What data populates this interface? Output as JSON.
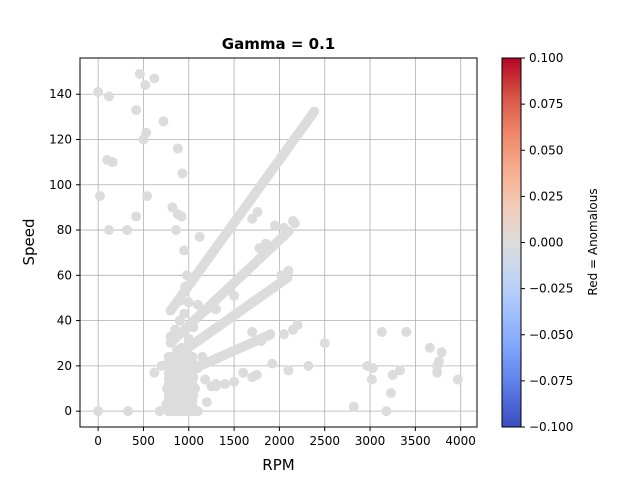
{
  "chart_data": {
    "type": "scatter",
    "title": "Gamma = 0.1",
    "xlabel": "RPM",
    "ylabel": "Speed",
    "xlim": [
      -200,
      4180
    ],
    "ylim": [
      -7,
      156
    ],
    "xticks": [
      0,
      500,
      1000,
      1500,
      2000,
      2500,
      3000,
      3500,
      4000
    ],
    "yticks": [
      0,
      20,
      40,
      60,
      80,
      100,
      120,
      140
    ],
    "grid": true,
    "point_color": "#dddcdc",
    "colorbar": {
      "label": "Red = Anomalous",
      "range": [
        -0.1,
        0.1
      ],
      "ticks": [
        "0.100",
        "0.075",
        "0.050",
        "0.025",
        "0.000",
        "−0.025",
        "−0.050",
        "−0.075",
        "−0.100"
      ],
      "colormap": "coolwarm",
      "colors": [
        "#3b4cc0",
        "#5977e3",
        "#7b9ff9",
        "#9ebeff",
        "#c0d4f5",
        "#dddcdc",
        "#f2cbb7",
        "#f7ac8e",
        "#ee8468",
        "#d65244",
        "#b40426"
      ]
    },
    "lines": [
      {
        "x1": 800,
        "x2": 2400,
        "slope": 0.0555,
        "step": 24
      },
      {
        "x1": 800,
        "x2": 2100,
        "slope": 0.0378,
        "step": 26
      },
      {
        "x1": 800,
        "x2": 2100,
        "slope": 0.0282,
        "step": 28
      },
      {
        "x1": 800,
        "x2": 1900,
        "slope": 0.0178,
        "step": 30
      }
    ],
    "points": [
      [
        0,
        141
      ],
      [
        120,
        139
      ],
      [
        460,
        149
      ],
      [
        620,
        147
      ],
      [
        520,
        144
      ],
      [
        420,
        133
      ],
      [
        720,
        128
      ],
      [
        530,
        123
      ],
      [
        500,
        120
      ],
      [
        880,
        116
      ],
      [
        100,
        111
      ],
      [
        160,
        110
      ],
      [
        930,
        105
      ],
      [
        20,
        95
      ],
      [
        540,
        95
      ],
      [
        820,
        90
      ],
      [
        880,
        87
      ],
      [
        420,
        86
      ],
      [
        920,
        86
      ],
      [
        320,
        80
      ],
      [
        120,
        80
      ],
      [
        860,
        80
      ],
      [
        1120,
        77
      ],
      [
        950,
        71
      ],
      [
        980,
        60
      ],
      [
        0,
        0
      ],
      [
        330,
        0
      ],
      [
        680,
        0
      ],
      [
        2820,
        2
      ],
      [
        3180,
        0
      ],
      [
        1100,
        0
      ],
      [
        1200,
        4
      ],
      [
        620,
        17
      ],
      [
        700,
        20
      ],
      [
        1150,
        24
      ],
      [
        1250,
        11
      ],
      [
        1300,
        11
      ],
      [
        1400,
        12
      ],
      [
        1500,
        13
      ],
      [
        1600,
        17
      ],
      [
        1700,
        15
      ],
      [
        1750,
        16
      ],
      [
        1800,
        31
      ],
      [
        1920,
        21
      ],
      [
        2100,
        18
      ],
      [
        2320,
        20
      ],
      [
        2500,
        30
      ],
      [
        1700,
        35
      ],
      [
        1900,
        34
      ],
      [
        2050,
        34
      ],
      [
        2150,
        36
      ],
      [
        2200,
        38
      ],
      [
        2020,
        60
      ],
      [
        2100,
        62
      ],
      [
        1780,
        72
      ],
      [
        1850,
        74
      ],
      [
        1700,
        85
      ],
      [
        1760,
        88
      ],
      [
        1950,
        82
      ],
      [
        2050,
        81
      ],
      [
        2150,
        84
      ],
      [
        2170,
        83
      ],
      [
        1300,
        45
      ],
      [
        1200,
        45
      ],
      [
        1500,
        51
      ],
      [
        1000,
        23
      ],
      [
        900,
        26
      ],
      [
        1000,
        31
      ],
      [
        1050,
        37
      ],
      [
        1000,
        48
      ],
      [
        920,
        49
      ],
      [
        960,
        55
      ],
      [
        1000,
        32
      ],
      [
        1100,
        47
      ],
      [
        1000,
        16
      ],
      [
        2970,
        20
      ],
      [
        3030,
        19
      ],
      [
        3020,
        14
      ],
      [
        3130,
        35
      ],
      [
        3250,
        16
      ],
      [
        3330,
        18
      ],
      [
        3400,
        35
      ],
      [
        3230,
        8
      ],
      [
        3660,
        28
      ],
      [
        3790,
        26
      ],
      [
        3740,
        20
      ],
      [
        3760,
        22
      ],
      [
        3740,
        17
      ],
      [
        3970,
        14
      ],
      [
        1070,
        10
      ],
      [
        1050,
        7
      ],
      [
        1180,
        14
      ],
      [
        1300,
        12
      ],
      [
        800,
        33
      ],
      [
        850,
        36
      ],
      [
        870,
        27
      ],
      [
        900,
        40
      ],
      [
        950,
        43
      ],
      [
        780,
        22
      ],
      [
        840,
        18
      ],
      [
        1050,
        15
      ],
      [
        1100,
        19
      ],
      [
        1150,
        21
      ],
      [
        1000,
        9
      ],
      [
        950,
        6
      ],
      [
        980,
        2
      ],
      [
        1050,
        1
      ],
      [
        750,
        3
      ],
      [
        780,
        1
      ],
      [
        820,
        6
      ],
      [
        850,
        10
      ],
      [
        760,
        10
      ],
      [
        870,
        24
      ],
      [
        920,
        28
      ]
    ],
    "cluster": {
      "x1": 780,
      "x2": 1040,
      "y1": 0,
      "y2": 24,
      "dx": 20,
      "dy": 2.4
    }
  }
}
